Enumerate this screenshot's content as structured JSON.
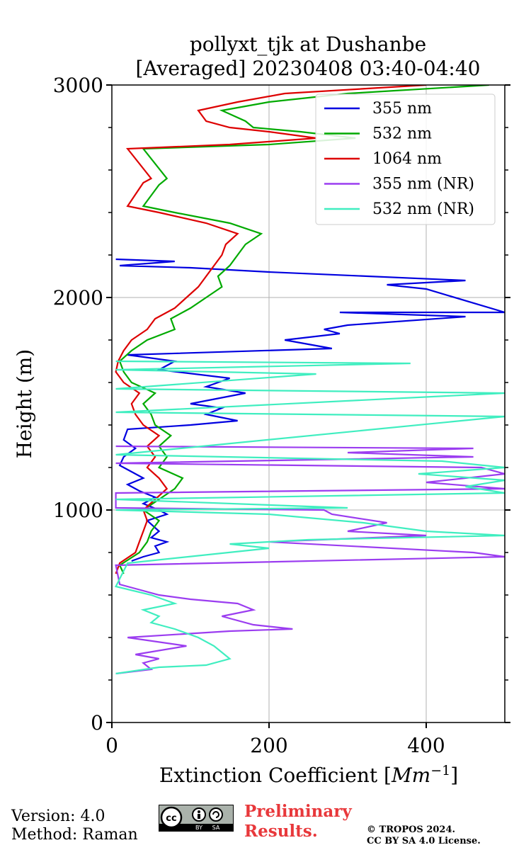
{
  "chart_data": {
    "type": "line",
    "title": "pollyxt_tjk at Dushanbe",
    "subtitle": "[Averaged] 20230408 03:40-04:40",
    "xlabel": "Extinction Coefficient [",
    "xlabel_unit": "Mm",
    "xlabel_exp": "−1",
    "xlabel_end": "]",
    "ylabel": "Height (m)",
    "xlim": [
      0,
      500
    ],
    "ylim": [
      0,
      3000
    ],
    "xticks": [
      0,
      200,
      400
    ],
    "xtick_labels": [
      "0",
      "200",
      "400"
    ],
    "yticks": [
      0,
      1000,
      2000,
      3000
    ],
    "ytick_labels": [
      "0",
      "1000",
      "2000",
      "3000"
    ],
    "grid": true,
    "legend_position": "top-right",
    "series": [
      {
        "name": "355 nm",
        "color": "#0000e0",
        "points": [
          [
            25,
            760
          ],
          [
            40,
            780
          ],
          [
            60,
            800
          ],
          [
            55,
            830
          ],
          [
            70,
            850
          ],
          [
            50,
            870
          ],
          [
            60,
            900
          ],
          [
            45,
            950
          ],
          [
            70,
            980
          ],
          [
            60,
            1000
          ],
          [
            40,
            1030
          ],
          [
            55,
            1060
          ],
          [
            35,
            1090
          ],
          [
            20,
            1120
          ],
          [
            40,
            1150
          ],
          [
            25,
            1180
          ],
          [
            10,
            1210
          ],
          [
            15,
            1250
          ],
          [
            30,
            1290
          ],
          [
            15,
            1330
          ],
          [
            20,
            1380
          ],
          [
            100,
            1400
          ],
          [
            160,
            1420
          ],
          [
            120,
            1450
          ],
          [
            140,
            1480
          ],
          [
            100,
            1500
          ],
          [
            170,
            1550
          ],
          [
            120,
            1580
          ],
          [
            150,
            1620
          ],
          [
            60,
            1660
          ],
          [
            80,
            1700
          ],
          [
            20,
            1730
          ],
          [
            280,
            1760
          ],
          [
            250,
            1780
          ],
          [
            220,
            1800
          ],
          [
            290,
            1830
          ],
          [
            270,
            1850
          ],
          [
            300,
            1870
          ],
          [
            450,
            1910
          ],
          [
            290,
            1930
          ],
          [
            500,
            1930
          ],
          [
            400,
            2040
          ],
          [
            350,
            2060
          ],
          [
            450,
            2080
          ],
          [
            200,
            2120
          ],
          [
            100,
            2140
          ],
          [
            10,
            2150
          ],
          [
            80,
            2170
          ],
          [
            5,
            2180
          ]
        ]
      },
      {
        "name": "532 nm",
        "color": "#00aa00",
        "points": [
          [
            15,
            700
          ],
          [
            10,
            740
          ],
          [
            35,
            800
          ],
          [
            45,
            850
          ],
          [
            50,
            900
          ],
          [
            60,
            950
          ],
          [
            40,
            1000
          ],
          [
            60,
            1050
          ],
          [
            80,
            1100
          ],
          [
            90,
            1150
          ],
          [
            60,
            1200
          ],
          [
            70,
            1250
          ],
          [
            60,
            1300
          ],
          [
            75,
            1350
          ],
          [
            55,
            1400
          ],
          [
            50,
            1450
          ],
          [
            40,
            1500
          ],
          [
            55,
            1550
          ],
          [
            25,
            1600
          ],
          [
            15,
            1650
          ],
          [
            10,
            1700
          ],
          [
            25,
            1750
          ],
          [
            45,
            1800
          ],
          [
            80,
            1850
          ],
          [
            75,
            1900
          ],
          [
            100,
            1950
          ],
          [
            120,
            2000
          ],
          [
            140,
            2050
          ],
          [
            135,
            2100
          ],
          [
            150,
            2150
          ],
          [
            160,
            2200
          ],
          [
            170,
            2250
          ],
          [
            190,
            2300
          ],
          [
            150,
            2350
          ],
          [
            80,
            2400
          ],
          [
            40,
            2430
          ],
          [
            60,
            2530
          ],
          [
            70,
            2560
          ],
          [
            40,
            2700
          ],
          [
            200,
            2720
          ],
          [
            310,
            2750
          ],
          [
            240,
            2780
          ],
          [
            180,
            2800
          ],
          [
            170,
            2830
          ],
          [
            140,
            2880
          ],
          [
            200,
            2920
          ],
          [
            300,
            2960
          ],
          [
            480,
            3000
          ]
        ]
      },
      {
        "name": "1064 nm",
        "color": "#dd0000",
        "points": [
          [
            5,
            700
          ],
          [
            10,
            750
          ],
          [
            30,
            800
          ],
          [
            35,
            850
          ],
          [
            40,
            900
          ],
          [
            45,
            950
          ],
          [
            40,
            1000
          ],
          [
            55,
            1050
          ],
          [
            70,
            1100
          ],
          [
            60,
            1150
          ],
          [
            45,
            1200
          ],
          [
            55,
            1250
          ],
          [
            45,
            1300
          ],
          [
            60,
            1350
          ],
          [
            40,
            1400
          ],
          [
            30,
            1450
          ],
          [
            25,
            1500
          ],
          [
            35,
            1550
          ],
          [
            15,
            1600
          ],
          [
            5,
            1650
          ],
          [
            8,
            1700
          ],
          [
            15,
            1750
          ],
          [
            25,
            1800
          ],
          [
            45,
            1850
          ],
          [
            55,
            1900
          ],
          [
            80,
            1950
          ],
          [
            95,
            2000
          ],
          [
            110,
            2050
          ],
          [
            120,
            2100
          ],
          [
            130,
            2150
          ],
          [
            140,
            2200
          ],
          [
            145,
            2250
          ],
          [
            160,
            2300
          ],
          [
            120,
            2350
          ],
          [
            60,
            2400
          ],
          [
            20,
            2430
          ],
          [
            40,
            2540
          ],
          [
            50,
            2560
          ],
          [
            20,
            2700
          ],
          [
            150,
            2720
          ],
          [
            260,
            2750
          ],
          [
            200,
            2780
          ],
          [
            150,
            2800
          ],
          [
            120,
            2830
          ],
          [
            110,
            2880
          ],
          [
            160,
            2920
          ],
          [
            220,
            2960
          ],
          [
            400,
            3000
          ]
        ]
      },
      {
        "name": "355 nm (NR)",
        "color": "#9b3df0",
        "points": [
          [
            5,
            230
          ],
          [
            50,
            250
          ],
          [
            40,
            280
          ],
          [
            60,
            300
          ],
          [
            30,
            320
          ],
          [
            95,
            360
          ],
          [
            20,
            400
          ],
          [
            150,
            430
          ],
          [
            230,
            440
          ],
          [
            180,
            460
          ],
          [
            140,
            500
          ],
          [
            180,
            530
          ],
          [
            160,
            560
          ],
          [
            100,
            580
          ],
          [
            60,
            600
          ],
          [
            40,
            620
          ],
          [
            10,
            650
          ],
          [
            5,
            740
          ],
          [
            500,
            780
          ],
          [
            460,
            800
          ],
          [
            200,
            850
          ],
          [
            400,
            880
          ],
          [
            300,
            900
          ],
          [
            350,
            940
          ],
          [
            280,
            980
          ],
          [
            270,
            1000
          ],
          [
            5,
            1010
          ],
          [
            5,
            1080
          ],
          [
            500,
            1100
          ],
          [
            400,
            1130
          ],
          [
            500,
            1170
          ],
          [
            470,
            1200
          ],
          [
            5,
            1220
          ],
          [
            460,
            1250
          ],
          [
            300,
            1270
          ],
          [
            460,
            1290
          ],
          [
            5,
            1300
          ]
        ]
      },
      {
        "name": "532 nm (NR)",
        "color": "#40eec0",
        "points": [
          [
            5,
            230
          ],
          [
            60,
            260
          ],
          [
            120,
            270
          ],
          [
            150,
            300
          ],
          [
            140,
            330
          ],
          [
            130,
            360
          ],
          [
            110,
            400
          ],
          [
            80,
            440
          ],
          [
            50,
            470
          ],
          [
            60,
            500
          ],
          [
            40,
            530
          ],
          [
            80,
            560
          ],
          [
            50,
            600
          ],
          [
            5,
            640
          ],
          [
            20,
            750
          ],
          [
            200,
            820
          ],
          [
            150,
            840
          ],
          [
            250,
            860
          ],
          [
            500,
            880
          ],
          [
            400,
            900
          ],
          [
            320,
            940
          ],
          [
            200,
            980
          ],
          [
            5,
            1000
          ],
          [
            300,
            1010
          ],
          [
            5,
            1050
          ],
          [
            500,
            1080
          ],
          [
            450,
            1110
          ],
          [
            500,
            1140
          ],
          [
            390,
            1170
          ],
          [
            500,
            1200
          ],
          [
            420,
            1230
          ],
          [
            5,
            1260
          ],
          [
            500,
            1440
          ],
          [
            5,
            1460
          ],
          [
            500,
            1550
          ],
          [
            5,
            1570
          ],
          [
            260,
            1640
          ],
          [
            5,
            1660
          ],
          [
            380,
            1690
          ],
          [
            5,
            1700
          ]
        ]
      }
    ]
  },
  "footer": {
    "version": "Version: 4.0",
    "method": "Method: Raman",
    "preliminary_1": "Preliminary",
    "preliminary_2": "Results.",
    "copyright_1": "© TROPOS 2024.",
    "copyright_2": "CC BY SA 4.0 License.",
    "license_logo": "cc-by-sa-logo",
    "logo_by": "BY",
    "logo_sa": "SA",
    "logo_cc": "cc"
  }
}
